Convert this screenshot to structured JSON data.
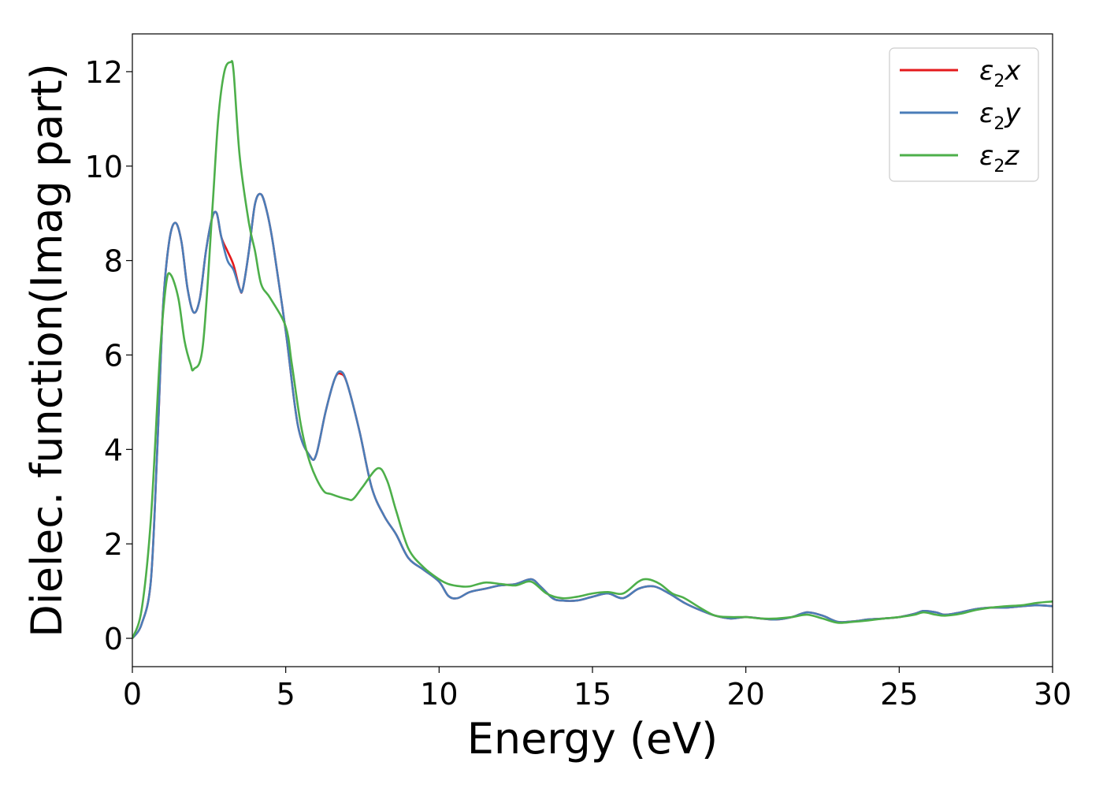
{
  "chart_data": {
    "type": "line",
    "xlabel": "Energy (eV)",
    "ylabel": "Dielec. function(Imag part)",
    "xlim": [
      0,
      30
    ],
    "ylim": [
      -0.6,
      12.8
    ],
    "xticks": [
      0,
      5,
      10,
      15,
      20,
      25,
      30
    ],
    "yticks": [
      0,
      2,
      4,
      6,
      8,
      10,
      12
    ],
    "grid": false,
    "legend_position": "top-right",
    "series": [
      {
        "name": "ε₂x",
        "legend": {
          "main": "ε",
          "sub": "2",
          "suffix": "x"
        },
        "color": "#e41a1c",
        "x": [
          0,
          0.3,
          0.6,
          0.8,
          1.0,
          1.2,
          1.4,
          1.6,
          1.8,
          2.0,
          2.2,
          2.4,
          2.6,
          2.75,
          2.9,
          3.1,
          3.3,
          3.5,
          3.6,
          3.8,
          4.0,
          4.2,
          4.4,
          4.6,
          5.0,
          5.4,
          5.8,
          6.0,
          6.3,
          6.6,
          6.8,
          7.0,
          7.4,
          7.8,
          8.2,
          8.6,
          9.0,
          9.5,
          10.0,
          10.3,
          10.6,
          11.0,
          11.5,
          12.0,
          12.5,
          13.0,
          13.3,
          13.7,
          14.0,
          14.5,
          15.0,
          15.5,
          16.0,
          16.5,
          17.0,
          17.5,
          18.0,
          18.5,
          19.0,
          19.5,
          20.0,
          20.5,
          21.0,
          21.5,
          22.0,
          22.5,
          23.0,
          23.5,
          24.0,
          24.5,
          25.0,
          25.5,
          25.8,
          26.2,
          26.5,
          27.0,
          27.5,
          28.0,
          28.5,
          29.0,
          29.5,
          30.0
        ],
        "y": [
          0,
          0.3,
          1.2,
          3.8,
          7.0,
          8.4,
          8.8,
          8.4,
          7.4,
          6.9,
          7.2,
          8.2,
          8.9,
          9.0,
          8.5,
          8.2,
          7.9,
          7.4,
          7.4,
          8.2,
          9.2,
          9.4,
          9.0,
          8.3,
          6.5,
          4.5,
          3.85,
          3.9,
          4.8,
          5.5,
          5.6,
          5.4,
          4.4,
          3.2,
          2.6,
          2.2,
          1.7,
          1.45,
          1.2,
          0.9,
          0.85,
          0.98,
          1.05,
          1.12,
          1.15,
          1.25,
          1.1,
          0.85,
          0.8,
          0.8,
          0.88,
          0.95,
          0.85,
          1.05,
          1.1,
          0.95,
          0.75,
          0.6,
          0.48,
          0.42,
          0.45,
          0.42,
          0.4,
          0.45,
          0.55,
          0.48,
          0.35,
          0.36,
          0.4,
          0.42,
          0.45,
          0.52,
          0.58,
          0.55,
          0.5,
          0.55,
          0.62,
          0.65,
          0.65,
          0.68,
          0.7,
          0.68
        ]
      },
      {
        "name": "ε₂y",
        "legend": {
          "main": "ε",
          "sub": "2",
          "suffix": "y"
        },
        "color": "#4a7db8",
        "x": [
          0,
          0.3,
          0.6,
          0.8,
          1.0,
          1.2,
          1.4,
          1.6,
          1.8,
          2.0,
          2.2,
          2.4,
          2.6,
          2.75,
          2.9,
          3.1,
          3.3,
          3.5,
          3.6,
          3.8,
          4.0,
          4.2,
          4.4,
          4.6,
          5.0,
          5.4,
          5.8,
          6.0,
          6.3,
          6.6,
          6.8,
          7.0,
          7.4,
          7.8,
          8.2,
          8.6,
          9.0,
          9.5,
          10.0,
          10.3,
          10.6,
          11.0,
          11.5,
          12.0,
          12.5,
          13.0,
          13.3,
          13.7,
          14.0,
          14.5,
          15.0,
          15.5,
          16.0,
          16.5,
          17.0,
          17.5,
          18.0,
          18.5,
          19.0,
          19.5,
          20.0,
          20.5,
          21.0,
          21.5,
          22.0,
          22.5,
          23.0,
          23.5,
          24.0,
          24.5,
          25.0,
          25.5,
          25.8,
          26.2,
          26.5,
          27.0,
          27.5,
          28.0,
          28.5,
          29.0,
          29.5,
          30.0
        ],
        "y": [
          0,
          0.3,
          1.2,
          3.8,
          7.0,
          8.4,
          8.8,
          8.4,
          7.4,
          6.9,
          7.2,
          8.2,
          8.9,
          9.0,
          8.5,
          8.0,
          7.8,
          7.4,
          7.4,
          8.2,
          9.2,
          9.4,
          9.0,
          8.3,
          6.5,
          4.5,
          3.85,
          3.9,
          4.8,
          5.5,
          5.65,
          5.4,
          4.4,
          3.2,
          2.6,
          2.2,
          1.7,
          1.45,
          1.2,
          0.9,
          0.85,
          0.98,
          1.05,
          1.12,
          1.15,
          1.25,
          1.1,
          0.85,
          0.8,
          0.8,
          0.88,
          0.95,
          0.85,
          1.05,
          1.1,
          0.95,
          0.75,
          0.6,
          0.48,
          0.42,
          0.45,
          0.42,
          0.4,
          0.45,
          0.55,
          0.48,
          0.35,
          0.36,
          0.4,
          0.42,
          0.45,
          0.52,
          0.58,
          0.55,
          0.5,
          0.55,
          0.62,
          0.65,
          0.65,
          0.68,
          0.7,
          0.68
        ]
      },
      {
        "name": "ε₂z",
        "legend": {
          "main": "ε",
          "sub": "2",
          "suffix": "z"
        },
        "color": "#4daf4a",
        "x": [
          0,
          0.3,
          0.6,
          0.9,
          1.1,
          1.25,
          1.5,
          1.7,
          1.9,
          2.0,
          2.3,
          2.6,
          2.8,
          3.0,
          3.2,
          3.3,
          3.5,
          3.8,
          4.0,
          4.2,
          4.5,
          5.0,
          5.2,
          5.5,
          5.8,
          6.2,
          6.5,
          7.0,
          7.2,
          7.5,
          8.0,
          8.3,
          8.6,
          9.0,
          9.5,
          10.0,
          10.3,
          10.7,
          11.0,
          11.5,
          12.0,
          12.5,
          13.0,
          13.5,
          14.0,
          14.5,
          15.0,
          15.5,
          16.0,
          16.5,
          16.8,
          17.2,
          17.6,
          18.0,
          18.5,
          19.0,
          19.5,
          20.0,
          20.5,
          21.0,
          21.5,
          22.0,
          22.5,
          23.0,
          23.5,
          24.0,
          24.5,
          25.0,
          25.5,
          25.8,
          26.2,
          26.5,
          27.0,
          27.5,
          28.0,
          28.5,
          29.0,
          29.5,
          30.0
        ],
        "y": [
          0,
          0.6,
          2.5,
          6.0,
          7.5,
          7.7,
          7.2,
          6.3,
          5.8,
          5.7,
          6.2,
          9.0,
          11.0,
          12.0,
          12.2,
          12.0,
          10.2,
          8.8,
          8.2,
          7.5,
          7.2,
          6.6,
          5.8,
          4.5,
          3.7,
          3.15,
          3.05,
          2.95,
          2.95,
          3.2,
          3.6,
          3.35,
          2.7,
          1.9,
          1.5,
          1.25,
          1.15,
          1.1,
          1.1,
          1.18,
          1.15,
          1.12,
          1.2,
          0.95,
          0.85,
          0.88,
          0.95,
          0.98,
          0.95,
          1.2,
          1.25,
          1.15,
          0.95,
          0.85,
          0.65,
          0.48,
          0.45,
          0.45,
          0.42,
          0.42,
          0.45,
          0.5,
          0.42,
          0.33,
          0.35,
          0.38,
          0.42,
          0.45,
          0.5,
          0.55,
          0.5,
          0.48,
          0.52,
          0.6,
          0.65,
          0.68,
          0.7,
          0.75,
          0.78
        ]
      }
    ]
  }
}
